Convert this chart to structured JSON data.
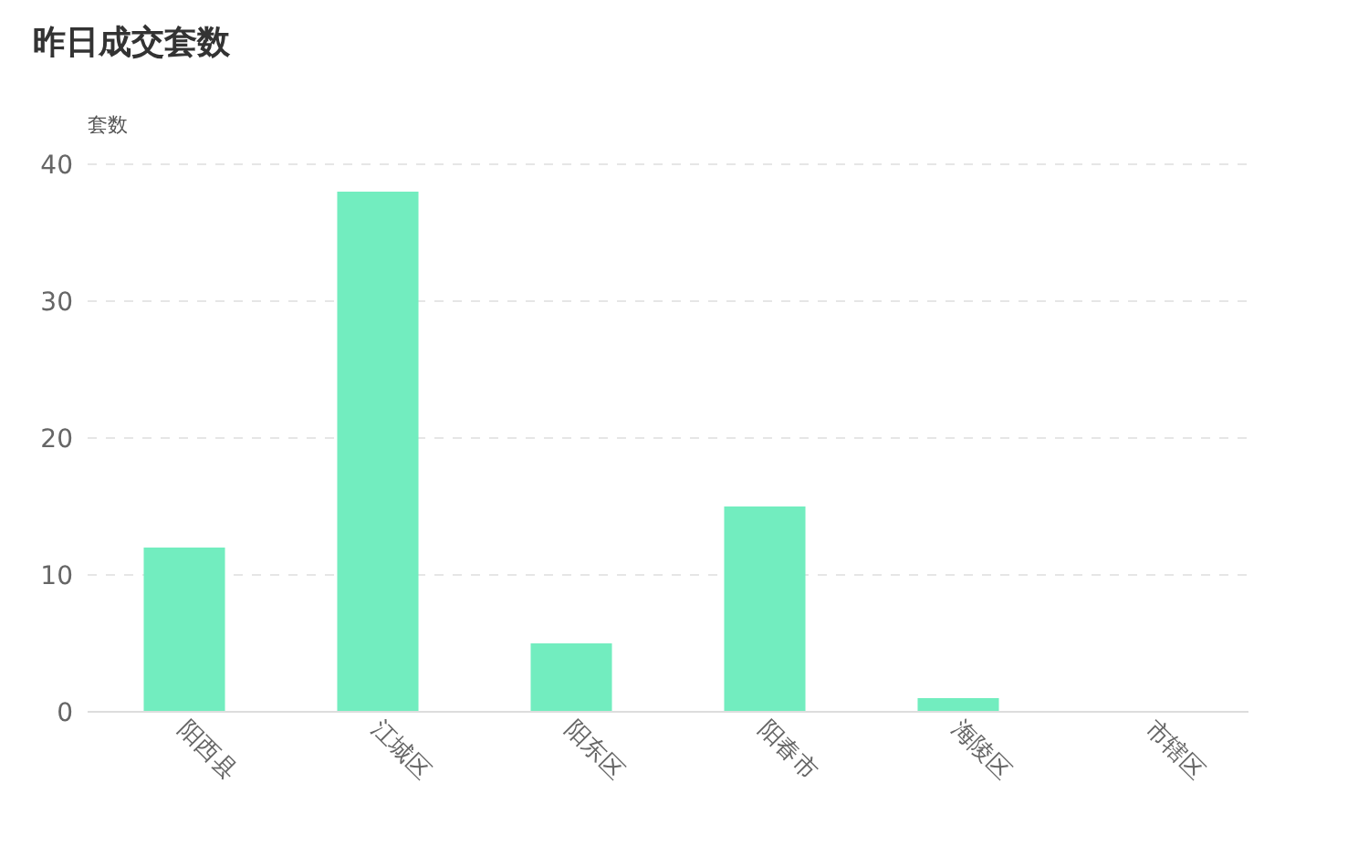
{
  "chart_data": {
    "type": "bar",
    "title": "昨日成交套数",
    "ylabel": "套数",
    "categories": [
      "阳西县",
      "江城区",
      "阳东区",
      "阳春市",
      "海陵区",
      "市辖区"
    ],
    "values": [
      12,
      38,
      5,
      15,
      1,
      0
    ],
    "color": "#72edbf",
    "ylim": [
      0,
      40
    ],
    "yticks": [
      0,
      10,
      20,
      30,
      40
    ],
    "grid": "y"
  }
}
